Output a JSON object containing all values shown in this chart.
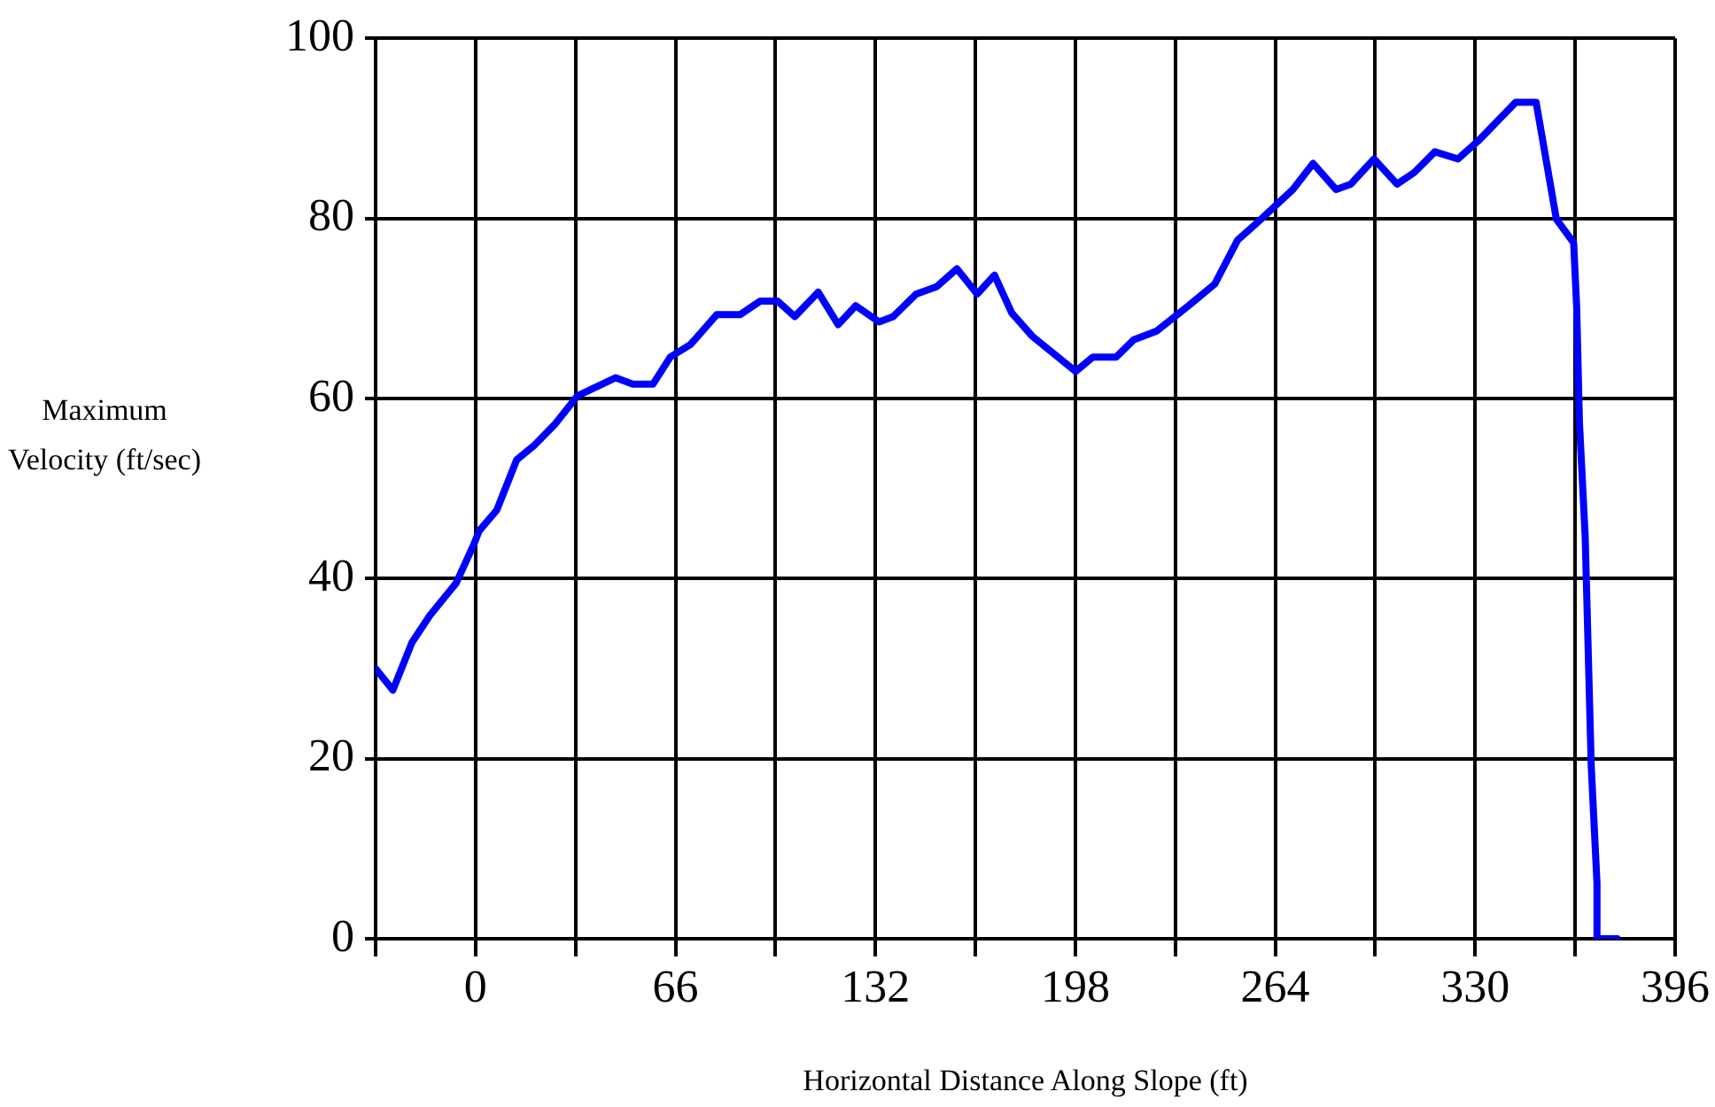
{
  "chart_data": {
    "type": "line",
    "xlabel": "Horizontal Distance Along Slope (ft)",
    "ylabel": "Maximum Velocity (ft/sec)",
    "xlim": [
      -33,
      396
    ],
    "ylim": [
      0,
      100
    ],
    "xticks": [
      {
        "value": -33,
        "label": null
      },
      0,
      {
        "value": 33,
        "label": null
      },
      66,
      {
        "value": 99,
        "label": null
      },
      132,
      {
        "value": 165,
        "label": null
      },
      198,
      {
        "value": 231,
        "label": null
      },
      264,
      {
        "value": 297,
        "label": null
      },
      330,
      {
        "value": 363,
        "label": null
      },
      396
    ],
    "yticks": [
      0,
      20,
      40,
      60,
      80,
      100
    ],
    "grid": true,
    "legend": false,
    "line_style": "solid",
    "series": [
      {
        "color": "#0000ff",
        "x": [
          -33,
          -27.3,
          -21,
          -15.1,
          -6.4,
          -0.7,
          1.2,
          7,
          13.6,
          19.4,
          26.1,
          33.7,
          46.2,
          51.9,
          58.6,
          64.3,
          71,
          79.6,
          87.3,
          93.9,
          99.7,
          105.4,
          113.1,
          119.7,
          125.5,
          133.2,
          137.9,
          145.5,
          152.2,
          158.9,
          165.6,
          171.3,
          177,
          183.8,
          198.1,
          203.8,
          211.5,
          217.2,
          224.9,
          235.4,
          244,
          251.6,
          258.3,
          269.8,
          276.5,
          284.1,
          288.9,
          296.6,
          304.2,
          309.9,
          316.7,
          324.3,
          331,
          343.4,
          350.1,
          356.8,
          362.5,
          363.5,
          364.4,
          366.3,
          367.3,
          368.3,
          370.2,
          370.2,
          376.9
        ],
        "values": [
          30,
          27.6,
          32.9,
          35.9,
          39.5,
          43.7,
          45.3,
          47.6,
          53.2,
          54.8,
          57.1,
          60.3,
          62.3,
          61.6,
          61.6,
          64.6,
          66,
          69.3,
          69.3,
          70.8,
          70.8,
          69.1,
          71.8,
          68.2,
          70.3,
          68.5,
          69.1,
          71.6,
          72.4,
          74.4,
          71.6,
          73.7,
          69.5,
          66.9,
          63,
          64.6,
          64.6,
          66.5,
          67.5,
          70.3,
          72.7,
          77.6,
          79.6,
          83.2,
          86.1,
          83.2,
          83.8,
          86.6,
          83.8,
          85.1,
          87.4,
          86.6,
          88.6,
          92.9,
          92.9,
          79.9,
          77.3,
          70.1,
          57.4,
          44.7,
          32,
          19.2,
          6.2,
          0,
          0
        ]
      }
    ]
  }
}
